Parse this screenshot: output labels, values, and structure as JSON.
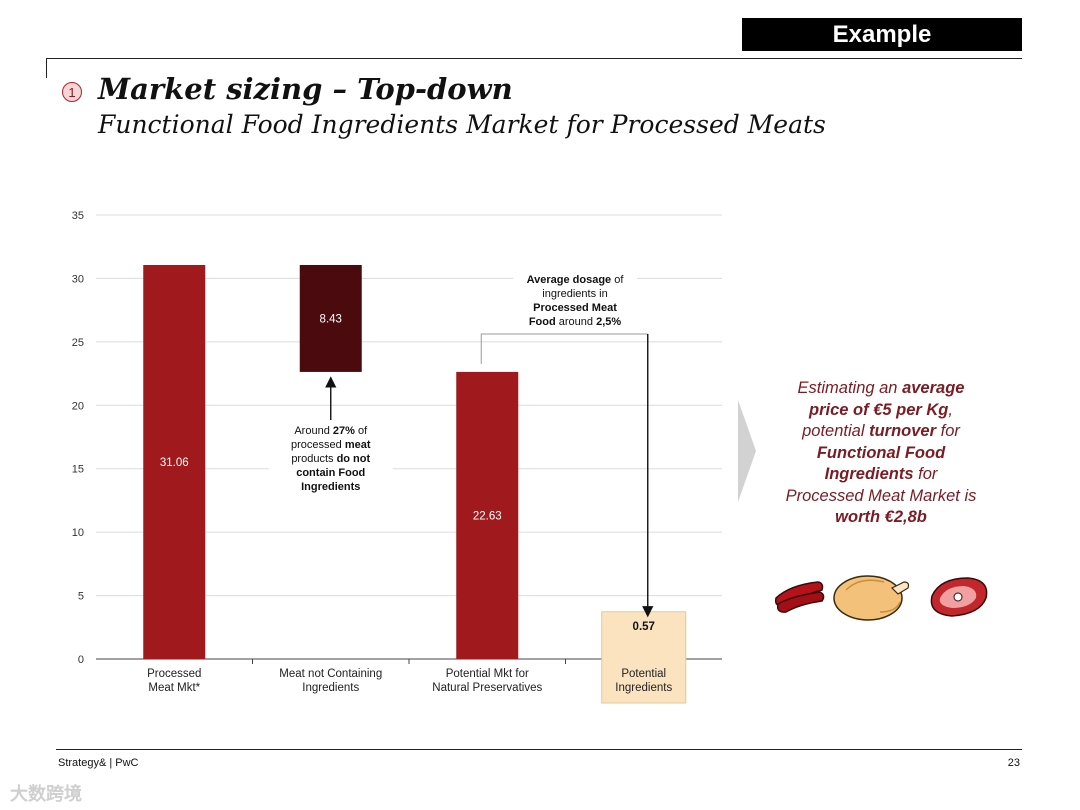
{
  "header": {
    "tag": "Example",
    "step_number": "1",
    "title": "Market sizing – Top-down",
    "subtitle": "Functional Food Ingredients Market for Processed Meats"
  },
  "chart_data": {
    "type": "bar",
    "subtype": "waterfall",
    "ylim": [
      0,
      35
    ],
    "yticks": [
      "0",
      "5",
      "10",
      "15",
      "20",
      "25",
      "30",
      "35"
    ],
    "grid": true,
    "categories": [
      "Processed\nMeat Mkt*",
      "Meat not Containing\nIngredients",
      "Potential Mkt for\nNatural Preservatives",
      "Potential\nIngredients"
    ],
    "bars": [
      {
        "base": 0,
        "top": 31.06,
        "label": "31.06",
        "color": "#a0191d",
        "label_color": "#ffffff"
      },
      {
        "base": 22.63,
        "top": 31.06,
        "label": "8.43",
        "color": "#4a0a0e",
        "label_color": "#ffffff"
      },
      {
        "base": 0,
        "top": 22.63,
        "label": "22.63",
        "color": "#a0191d",
        "label_color": "#ffffff"
      },
      {
        "base": 0,
        "top": 0.57,
        "label": "0.57",
        "color": "#fbe3c0",
        "label_color": "#111111"
      }
    ],
    "highlight_category_fill": "#fbe3c0",
    "annotations": [
      {
        "lines": [
          [
            {
              "t": "Around ",
              "b": false
            },
            {
              "t": "27%",
              "b": true
            },
            {
              "t": " of",
              "b": false
            }
          ],
          [
            {
              "t": "processed ",
              "b": false
            },
            {
              "t": "meat",
              "b": true
            }
          ],
          [
            {
              "t": "products ",
              "b": false
            },
            {
              "t": "do not",
              "b": true
            }
          ],
          [
            {
              "t": "contain Food",
              "b": true
            }
          ],
          [
            {
              "t": "Ingredients",
              "b": true
            }
          ]
        ]
      },
      {
        "lines": [
          [
            {
              "t": "Average dosage",
              "b": true
            },
            {
              "t": " of",
              "b": false
            }
          ],
          [
            {
              "t": "ingredients in",
              "b": false
            }
          ],
          [
            {
              "t": "Processed Meat",
              "b": true
            }
          ],
          [
            {
              "t": "Food",
              "b": true
            },
            {
              "t": " around ",
              "b": false
            },
            {
              "t": "2,5%",
              "b": true
            }
          ]
        ]
      }
    ]
  },
  "side_text": {
    "l1_pre": "Estimating an ",
    "l1_bold": "average",
    "l2_bold": "price of €5 per Kg",
    "l2_post": ",",
    "l3_pre": "potential ",
    "l3_bold": "turnover",
    "l3_post": " for",
    "l4_bold": "Functional Food",
    "l5_bold": "Ingredients",
    "l5_post": " for",
    "l6": "Processed Meat Market is",
    "l7_bold": "worth €2,8b"
  },
  "icons": [
    "sausage-icon",
    "roast-chicken-icon",
    "ham-steak-icon"
  ],
  "footer": {
    "left": "Strategy& | PwC",
    "page": "23"
  },
  "watermark": "大数跨境"
}
